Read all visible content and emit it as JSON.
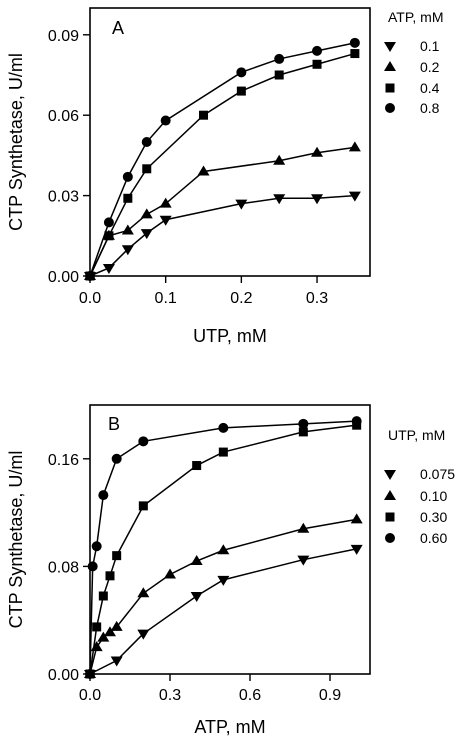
{
  "chart_data": [
    {
      "type": "line",
      "panel_label": "A",
      "xlabel": "UTP, mM",
      "ylabel": "CTP Synthetase, U/ml",
      "xlim": [
        0,
        0.37
      ],
      "ylim": [
        0,
        0.1
      ],
      "x_ticks": [
        "0.0",
        "0.1",
        "0.2",
        "0.3"
      ],
      "x_tick_values": [
        0,
        0.1,
        0.2,
        0.3
      ],
      "y_ticks": [
        "0.00",
        "0.03",
        "0.06",
        "0.09"
      ],
      "y_tick_values": [
        0,
        0.03,
        0.06,
        0.09
      ],
      "legend_title": "ATP, mM",
      "legend_position": "right",
      "grid": false,
      "series": [
        {
          "name": "0.1",
          "marker": "triangle-down",
          "x": [
            0,
            0.025,
            0.05,
            0.075,
            0.1,
            0.2,
            0.25,
            0.3,
            0.35
          ],
          "y": [
            0,
            0.003,
            0.01,
            0.016,
            0.021,
            0.027,
            0.029,
            0.029,
            0.03
          ]
        },
        {
          "name": "0.2",
          "marker": "triangle-up",
          "x": [
            0,
            0.025,
            0.05,
            0.075,
            0.1,
            0.15,
            0.25,
            0.3,
            0.35
          ],
          "y": [
            0,
            0.015,
            0.017,
            0.023,
            0.027,
            0.039,
            0.043,
            0.046,
            0.048
          ]
        },
        {
          "name": "0.4",
          "marker": "square",
          "x": [
            0,
            0.025,
            0.05,
            0.075,
            0.15,
            0.2,
            0.25,
            0.3,
            0.35
          ],
          "y": [
            0,
            0.015,
            0.029,
            0.04,
            0.06,
            0.069,
            0.075,
            0.079,
            0.083
          ]
        },
        {
          "name": "0.8",
          "marker": "circle",
          "x": [
            0,
            0.025,
            0.05,
            0.075,
            0.1,
            0.2,
            0.25,
            0.3,
            0.35
          ],
          "y": [
            0,
            0.02,
            0.037,
            0.05,
            0.058,
            0.076,
            0.081,
            0.084,
            0.087
          ]
        }
      ]
    },
    {
      "type": "line",
      "panel_label": "B",
      "xlabel": "ATP, mM",
      "ylabel": "CTP Synthetase, U/ml",
      "xlim": [
        0,
        1.05
      ],
      "ylim": [
        0,
        0.2
      ],
      "x_ticks": [
        "0.0",
        "0.3",
        "0.6",
        "0.9"
      ],
      "x_tick_values": [
        0,
        0.3,
        0.6,
        0.9
      ],
      "y_ticks": [
        "0.00",
        "0.08",
        "0.16"
      ],
      "y_tick_values": [
        0,
        0.08,
        0.16
      ],
      "legend_title": "UTP, mM",
      "legend_position": "right",
      "grid": false,
      "series": [
        {
          "name": "0.075",
          "marker": "triangle-down",
          "x": [
            0,
            0.1,
            0.2,
            0.4,
            0.5,
            0.8,
            1.0
          ],
          "y": [
            0,
            0.01,
            0.03,
            0.058,
            0.07,
            0.085,
            0.093
          ]
        },
        {
          "name": "0.10",
          "marker": "triangle-up",
          "x": [
            0,
            0.025,
            0.05,
            0.075,
            0.1,
            0.2,
            0.3,
            0.4,
            0.5,
            0.8,
            1.0
          ],
          "y": [
            0,
            0.02,
            0.027,
            0.031,
            0.035,
            0.06,
            0.074,
            0.084,
            0.092,
            0.108,
            0.115
          ]
        },
        {
          "name": "0.30",
          "marker": "square",
          "x": [
            0,
            0.025,
            0.05,
            0.075,
            0.1,
            0.2,
            0.4,
            0.5,
            0.8,
            1.0
          ],
          "y": [
            0,
            0.035,
            0.058,
            0.073,
            0.088,
            0.125,
            0.155,
            0.165,
            0.18,
            0.185
          ]
        },
        {
          "name": "0.60",
          "marker": "circle",
          "x": [
            0,
            0.01,
            0.025,
            0.05,
            0.1,
            0.2,
            0.5,
            0.8,
            1.0
          ],
          "y": [
            0,
            0.08,
            0.095,
            0.133,
            0.16,
            0.173,
            0.183,
            0.186,
            0.188
          ]
        }
      ]
    }
  ]
}
